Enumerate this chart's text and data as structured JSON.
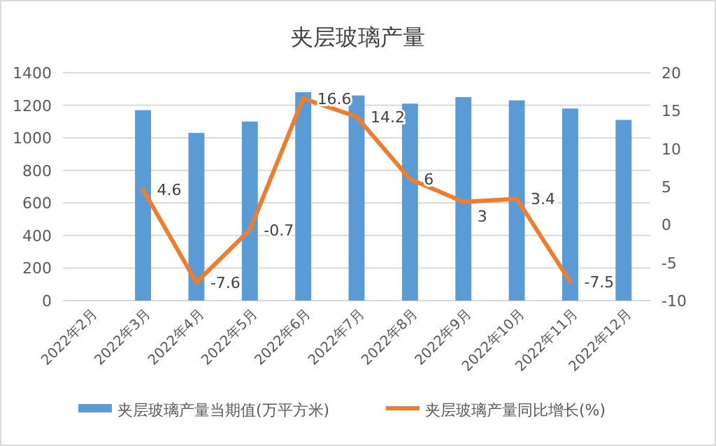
{
  "chart_data": {
    "type": "bar",
    "title": "夹层玻璃产量",
    "categories": [
      "2022年2月",
      "2022年3月",
      "2022年4月",
      "2022年5月",
      "2022年6月",
      "2022年7月",
      "2022年8月",
      "2022年9月",
      "2022年10月",
      "2022年11月",
      "2022年12月"
    ],
    "series": [
      {
        "name": "夹层玻璃产量当期值(万平方米)",
        "color": "#5b9bd5",
        "values": [
          null,
          1170,
          1030,
          1100,
          1280,
          1260,
          1210,
          1250,
          1230,
          1180,
          1110
        ]
      },
      {
        "name": "夹层玻璃产量同比增长(%)",
        "type": "line",
        "axis": "y2",
        "color": "#ed7d31",
        "values": [
          null,
          4.6,
          -7.6,
          -0.7,
          16.6,
          14.2,
          6,
          3,
          3.4,
          -7.5,
          null
        ],
        "value_labels": [
          null,
          "4.6",
          "-7.6",
          "-0.7",
          "16.6",
          "14.2",
          "6",
          "3",
          "3.4",
          "-7.5",
          null
        ]
      }
    ],
    "ylim": [
      0,
      1400
    ],
    "yticks": [
      0,
      200,
      400,
      600,
      800,
      1000,
      1200,
      1400
    ],
    "y2lim": [
      -10,
      20
    ],
    "y2ticks": [
      -10,
      -5,
      0,
      5,
      10,
      15,
      20
    ],
    "grid": "y",
    "legend": "bottom",
    "marker": "none",
    "line_style": "solid"
  }
}
